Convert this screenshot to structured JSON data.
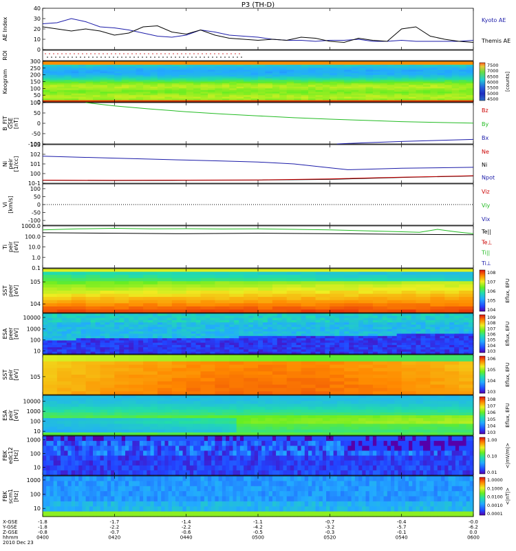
{
  "chart_data": {
    "type": "heatmap",
    "title": "P3 (TH-D)",
    "date_label": "2010 Dec 23",
    "ephemeris": {
      "row_labels": [
        "X-GSE",
        "Y-GSE",
        "Z-GSE",
        "hhmm"
      ],
      "rows": [
        [
          "-1.8",
          "-1.7",
          "-1.4",
          "-1.1",
          "-0.7",
          "-0.4",
          "-0.0"
        ],
        [
          "-1.8",
          "-2.2",
          "-2.2",
          "-4.2",
          "-3.2",
          "-5.7",
          "-6.2"
        ],
        [
          "-0.8",
          "-0.7",
          "-0.6",
          "-0.5",
          "-0.3",
          "-0.1",
          "0.0"
        ],
        [
          "0400",
          "0420",
          "0440",
          "0500",
          "0520",
          "0540",
          "0600"
        ]
      ]
    },
    "panels": [
      {
        "id": "ae",
        "ylabel": "AE Index",
        "yticks": [
          "0",
          "10",
          "20",
          "30",
          "40"
        ],
        "ylim": [
          0,
          40
        ],
        "legend": [
          {
            "label": "Kyoto AE",
            "color": "#1a1aa8"
          },
          {
            "label": "Themis AE",
            "color": "#000000"
          }
        ],
        "series": [
          {
            "name": "Kyoto AE",
            "color": "#1a1aa8",
            "x": [
              0,
              4,
              8,
              12,
              16,
              20,
              24,
              28,
              32,
              36,
              40,
              44,
              48,
              52,
              56,
              60,
              64,
              68,
              72,
              76,
              80,
              84,
              88,
              92,
              96,
              100,
              104,
              108,
              112,
              116,
              120
            ],
            "values": [
              25,
              26,
              30,
              27,
              22,
              21,
              19,
              16,
              13,
              12,
              14,
              19,
              17,
              14,
              13,
              12,
              10,
              9,
              9,
              8,
              9,
              9,
              10,
              8,
              8,
              9,
              8,
              8,
              8,
              8,
              9
            ]
          },
          {
            "name": "Themis AE",
            "color": "#000000",
            "x": [
              0,
              4,
              8,
              12,
              16,
              20,
              24,
              28,
              32,
              36,
              40,
              44,
              48,
              52,
              56,
              60,
              64,
              68,
              72,
              76,
              80,
              84,
              88,
              92,
              96,
              100,
              104,
              108,
              112,
              116,
              120
            ],
            "values": [
              22,
              20,
              18,
              20,
              18,
              14,
              16,
              22,
              23,
              17,
              15,
              19,
              14,
              11,
              10,
              9,
              10,
              9,
              12,
              11,
              8,
              7,
              11,
              9,
              8,
              20,
              22,
              13,
              10,
              8,
              7
            ]
          }
        ]
      },
      {
        "id": "roi",
        "ylabel": "ROI"
      },
      {
        "id": "keogram",
        "ylabel": "Keogram",
        "yticks": [
          "0",
          "50",
          "100",
          "150",
          "200",
          "250",
          "300"
        ],
        "colorbar": {
          "label": "[counts]",
          "ticks": [
            "7500",
            "7000",
            "6500",
            "6000",
            "5500",
            "5000",
            "4500"
          ]
        }
      },
      {
        "id": "bfit",
        "ylabel": "B_FIT",
        "ylabel2": "GSE",
        "units": "[nT]",
        "yticks": [
          "-100",
          "-50",
          "0",
          "50",
          "100"
        ],
        "ylim": [
          -100,
          100
        ],
        "legend": [
          {
            "label": "Bz",
            "color": "#cc0000"
          },
          {
            "label": "By",
            "color": "#22bb22"
          },
          {
            "label": "Bx",
            "color": "#1a1aa8"
          }
        ],
        "series": [
          {
            "name": "By",
            "color": "#22bb22",
            "x": [
              12,
              20,
              30,
              40,
              50,
              60,
              70,
              80,
              90,
              100,
              110,
              120
            ],
            "values": [
              100,
              84,
              69,
              56,
              45,
              36,
              27,
              20,
              14,
              8,
              4,
              1
            ]
          },
          {
            "name": "Bx",
            "color": "#1a1aa8",
            "x": [
              82,
              90,
              100,
              110,
              120
            ],
            "values": [
              -100,
              -94,
              -88,
              -83,
              -78
            ]
          }
        ]
      },
      {
        "id": "density",
        "ylabel": "Ni",
        "ylabel2": "peir",
        "units": "[1/cc]",
        "yticks": [
          "10-1",
          "100",
          "101",
          "102",
          "103"
        ],
        "legend": [
          {
            "label": "Ne",
            "color": "#cc0000"
          },
          {
            "label": "Ni",
            "color": "#000000"
          },
          {
            "label": "Npot",
            "color": "#1a1aa8"
          }
        ],
        "series": [
          {
            "name": "Npot",
            "color": "#1a1aa8",
            "x": [
              0,
              10,
              20,
              30,
              40,
              50,
              60,
              70,
              80,
              85,
              90,
              100,
              110,
              120
            ],
            "values": [
              1.8,
              1.7,
              1.6,
              1.5,
              1.4,
              1.3,
              1.2,
              1.0,
              0.6,
              0.4,
              0.45,
              0.55,
              0.6,
              0.65
            ]
          },
          {
            "name": "Ni",
            "color": "#000000",
            "x": [
              0,
              20,
              40,
              60,
              80,
              100,
              120
            ],
            "values": [
              -0.7,
              -0.72,
              -0.7,
              -0.68,
              -0.6,
              -0.4,
              -0.25
            ]
          },
          {
            "name": "Ne",
            "color": "#cc0000",
            "x": [
              0,
              20,
              40,
              60,
              80,
              100,
              120
            ],
            "values": [
              -0.68,
              -0.7,
              -0.68,
              -0.66,
              -0.55,
              -0.38,
              -0.22
            ]
          }
        ]
      },
      {
        "id": "velocity",
        "ylabel": "Vi",
        "units": "[km/s]",
        "yticks": [
          "-100",
          "-50",
          "0",
          "50",
          "100"
        ],
        "ylim": [
          -130,
          130
        ],
        "legend": [
          {
            "label": "Viz",
            "color": "#cc0000"
          },
          {
            "label": "Viy",
            "color": "#22bb22"
          },
          {
            "label": "Vix",
            "color": "#1a1aa8"
          }
        ]
      },
      {
        "id": "temperature",
        "ylabel": "Ti",
        "ylabel2": "peir",
        "units": "[eV]",
        "yticks": [
          "0.1",
          "1.0",
          "10.0",
          "100.0",
          "1000.0"
        ],
        "legend": [
          {
            "label": "Te||",
            "color": "#000000"
          },
          {
            "label": "Te⊥",
            "color": "#cc0000"
          },
          {
            "label": "Ti||",
            "color": "#22bb22"
          },
          {
            "label": "Ti⊥",
            "color": "#1a1aa8"
          }
        ],
        "series": [
          {
            "name": "Ti||",
            "color": "#22bb22",
            "x": [
              0,
              10,
              20,
              30,
              40,
              50,
              60,
              70,
              80,
              90,
              100,
              105,
              110,
              115,
              120
            ],
            "values": [
              2.9,
              3.0,
              3.05,
              3.0,
              3.02,
              2.98,
              3.0,
              2.95,
              2.9,
              2.8,
              2.7,
              2.65,
              2.95,
              2.7,
              2.5
            ]
          },
          {
            "name": "Te||",
            "color": "#000000",
            "x": [
              0,
              20,
              40,
              60,
              80,
              100,
              120
            ],
            "values": [
              2.6,
              2.55,
              2.5,
              2.55,
              2.5,
              2.45,
              2.4
            ]
          }
        ]
      },
      {
        "id": "sst_e",
        "ylabel": "SST",
        "ylabel2": "peer",
        "units": "[eV]",
        "yticks": [
          "104",
          "105"
        ],
        "colorbar": {
          "label": "Eflux, EFU",
          "ticks": [
            "108",
            "107",
            "106",
            "105",
            "104"
          ]
        }
      },
      {
        "id": "esa_e",
        "ylabel": "ESA",
        "ylabel2": "peer",
        "units": "[eV]",
        "yticks": [
          "10",
          "100",
          "1000",
          "10000"
        ],
        "colorbar": {
          "label": "Eflux, EFU",
          "ticks": [
            "109",
            "108",
            "107",
            "106",
            "105",
            "104",
            "103"
          ]
        }
      },
      {
        "id": "sst_i",
        "ylabel": "SST",
        "ylabel2": "peir",
        "units": "[eV]",
        "yticks": [
          "105"
        ],
        "colorbar": {
          "label": "Eflux, EFU",
          "ticks": [
            "106",
            "105",
            "104",
            "103"
          ]
        }
      },
      {
        "id": "esa_i",
        "ylabel": "ESA",
        "ylabel2": "peir",
        "units": "[eV]",
        "yticks": [
          "10",
          "100",
          "1000",
          "10000"
        ],
        "colorbar": {
          "label": "Eflux, EFU",
          "ticks": [
            "108",
            "107",
            "106",
            "105",
            "104",
            "103"
          ]
        }
      },
      {
        "id": "fbk_e",
        "ylabel": "FBK",
        "ylabel2": "edc12",
        "units": "[Hz]",
        "yticks": [
          "10",
          "100",
          "1000"
        ],
        "colorbar": {
          "label": "<|mV/m|>",
          "ticks": [
            "1.00",
            "0.10",
            "0.01"
          ]
        }
      },
      {
        "id": "fbk_b",
        "ylabel": "FBK",
        "ylabel2": "scm1",
        "units": "[Hz]",
        "yticks": [
          "10",
          "100",
          "1000"
        ],
        "colorbar": {
          "label": "<|nT|>",
          "ticks": [
            "1.0000",
            "0.1000",
            "0.0100",
            "0.0010",
            "0.0001"
          ]
        }
      }
    ]
  }
}
